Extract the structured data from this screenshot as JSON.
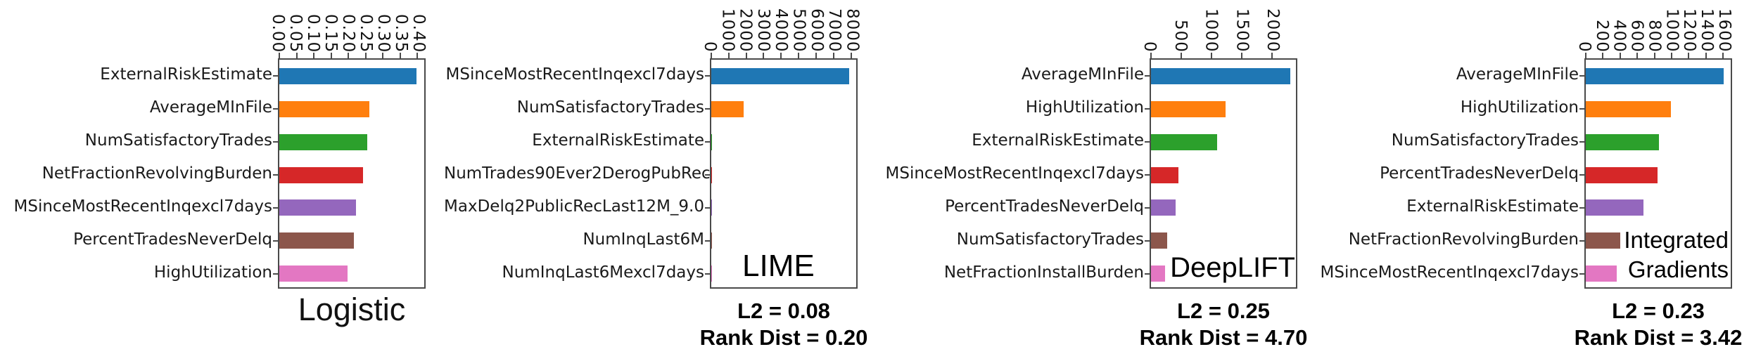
{
  "figure": {
    "background": "#ffffff"
  },
  "palette": [
    "#1f77b4",
    "#ff7f0e",
    "#2ca02c",
    "#d62728",
    "#9467bd",
    "#8c564b",
    "#e377c2"
  ],
  "chart_data": [
    {
      "type": "bar",
      "orientation": "horizontal",
      "title": "Logistic",
      "title_lines": [
        "Logistic"
      ],
      "title_position": "below",
      "stats": [],
      "categories": [
        "ExternalRiskEstimate",
        "AverageMInFile",
        "NumSatisfactoryTrades",
        "NetFractionRevolvingBurden",
        "MSinceMostRecentInqexcl7days",
        "PercentTradesNeverDelq",
        "HighUtilization"
      ],
      "values": [
        0.398,
        0.26,
        0.255,
        0.242,
        0.223,
        0.216,
        0.197
      ],
      "colors": [
        "#1f77b4",
        "#ff7f0e",
        "#2ca02c",
        "#d62728",
        "#9467bd",
        "#8c564b",
        "#e377c2"
      ],
      "xlim": [
        0,
        0.42
      ],
      "xtick_values": [
        0,
        0.05,
        0.1,
        0.15,
        0.2,
        0.25,
        0.3,
        0.35,
        0.4
      ],
      "xtick_labels": [
        "0.00",
        "0.05",
        "0.10",
        "0.15",
        "0.20",
        "0.25",
        "0.30",
        "0.35",
        "0.40"
      ],
      "grid": false,
      "legend": false
    },
    {
      "type": "bar",
      "orientation": "horizontal",
      "title": "LIME",
      "title_lines": [
        "LIME"
      ],
      "title_position": "inside-bottom-left",
      "stats": [
        "L2 = 0.08",
        "Rank Dist = 0.20"
      ],
      "categories": [
        "MSinceMostRecentInqexcl7days",
        "NumSatisfactoryTrades",
        "ExternalRiskEstimate",
        "NumTrades90Ever2DerogPubRec",
        "MaxDelq2PublicRecLast12M_9.0",
        "NumInqLast6M",
        "NumInqLast6Mexcl7days"
      ],
      "values": [
        7890,
        1860,
        30,
        20,
        15,
        10,
        8
      ],
      "colors": [
        "#1f77b4",
        "#ff7f0e",
        "#2ca02c",
        "#d62728",
        "#9467bd",
        "#8c564b",
        "#e377c2"
      ],
      "xlim": [
        0,
        8300
      ],
      "xtick_values": [
        0,
        1000,
        2000,
        3000,
        4000,
        5000,
        6000,
        7000,
        8000
      ],
      "xtick_labels": [
        "0",
        "1000",
        "2000",
        "3000",
        "4000",
        "5000",
        "6000",
        "7000",
        "8000"
      ],
      "grid": false,
      "legend": false
    },
    {
      "type": "bar",
      "orientation": "horizontal",
      "title": "DeepLIFT",
      "title_lines": [
        "DeepLIFT"
      ],
      "title_position": "inside-bottom-right",
      "stats": [
        "L2 = 0.25",
        "Rank Dist = 4.70"
      ],
      "categories": [
        "AverageMInFile",
        "HighUtilization",
        "ExternalRiskEstimate",
        "MSinceMostRecentInqexcl7days",
        "PercentTradesNeverDelq",
        "NumSatisfactoryTrades",
        "NetFractionInstallBurden"
      ],
      "values": [
        2310,
        1240,
        1095,
        450,
        405,
        265,
        230
      ],
      "colors": [
        "#1f77b4",
        "#ff7f0e",
        "#2ca02c",
        "#d62728",
        "#9467bd",
        "#8c564b",
        "#e377c2"
      ],
      "xlim": [
        0,
        2400
      ],
      "xtick_values": [
        0,
        500,
        1000,
        1500,
        2000
      ],
      "xtick_labels": [
        "0",
        "500",
        "1000",
        "1500",
        "2000"
      ],
      "grid": false,
      "legend": false
    },
    {
      "type": "bar",
      "orientation": "horizontal",
      "title": "Integrated Gradients",
      "title_lines": [
        "Integrated",
        "Gradients"
      ],
      "title_position": "inside-bottom-right-2line",
      "stats": [
        "L2 = 0.23",
        "Rank Dist = 3.42"
      ],
      "categories": [
        "AverageMInFile",
        "HighUtilization",
        "NumSatisfactoryTrades",
        "PercentTradesNeverDelq",
        "ExternalRiskEstimate",
        "NetFractionRevolvingBurden",
        "MSinceMostRecentInqexcl7days"
      ],
      "values": [
        1610,
        990,
        850,
        840,
        670,
        400,
        360
      ],
      "colors": [
        "#1f77b4",
        "#ff7f0e",
        "#2ca02c",
        "#d62728",
        "#9467bd",
        "#8c564b",
        "#e377c2"
      ],
      "xlim": [
        0,
        1690
      ],
      "xtick_values": [
        0,
        200,
        400,
        600,
        800,
        1000,
        1200,
        1400,
        1600
      ],
      "xtick_labels": [
        "0",
        "200",
        "400",
        "600",
        "800",
        "1000",
        "1200",
        "1400",
        "1600"
      ],
      "grid": false,
      "legend": false
    }
  ]
}
